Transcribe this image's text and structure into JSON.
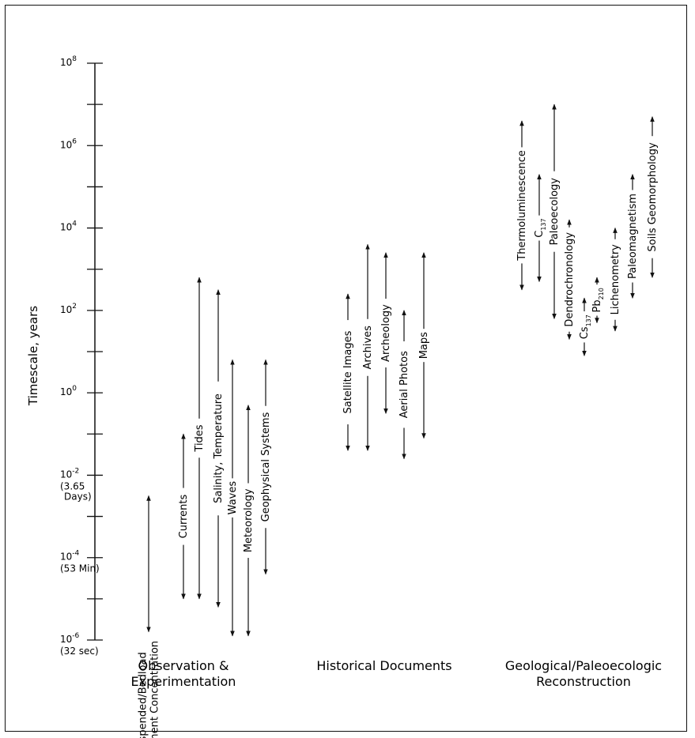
{
  "chart_data": {
    "type": "range",
    "ylabel": "Timescale, years",
    "y_scale": "log10",
    "ylim": [
      1e-06,
      100000000.0
    ],
    "tick_labels": [
      {
        "exp": 8,
        "label": "10",
        "sup": "8"
      },
      {
        "exp": 6,
        "label": "10",
        "sup": "6"
      },
      {
        "exp": 4,
        "label": "10",
        "sup": "4"
      },
      {
        "exp": 2,
        "label": "10",
        "sup": "2"
      },
      {
        "exp": 0,
        "label": "10",
        "sup": "0"
      },
      {
        "exp": -2,
        "label": "10",
        "sup": "-2",
        "note": [
          "(3.65",
          "Days)"
        ]
      },
      {
        "exp": -4,
        "label": "10",
        "sup": "-4",
        "note": [
          "(53 Min)"
        ]
      },
      {
        "exp": -6,
        "label": "10",
        "sup": "-6",
        "note": [
          "(32 sec)"
        ]
      }
    ],
    "groups": [
      {
        "name": [
          "Observation &",
          "Experimentation"
        ],
        "methods": [
          {
            "label": [
              "Suspended/Bedload",
              "Sediment Concentration"
            ],
            "min_exp": -5.8,
            "max_exp": -2.5
          },
          {
            "label": [
              "Currents"
            ],
            "min_exp": -5.0,
            "max_exp": -1.0
          },
          {
            "label": [
              "Tides"
            ],
            "min_exp": -5.0,
            "max_exp": 2.8
          },
          {
            "label": [
              "Salinity, Temperature"
            ],
            "min_exp": -5.2,
            "max_exp": 2.5
          },
          {
            "label": [
              "Waves"
            ],
            "min_exp": -5.9,
            "max_exp": 0.8
          },
          {
            "label": [
              "Meteorology"
            ],
            "min_exp": -5.9,
            "max_exp": -0.3
          },
          {
            "label": [
              "Geophysical Systems"
            ],
            "min_exp": -4.4,
            "max_exp": 0.8
          }
        ]
      },
      {
        "name": [
          "Historical Documents"
        ],
        "methods": [
          {
            "label": [
              "Satellite Images"
            ],
            "min_exp": -1.4,
            "max_exp": 2.4
          },
          {
            "label": [
              "Archives"
            ],
            "min_exp": -1.4,
            "max_exp": 3.6
          },
          {
            "label": [
              "Archeology"
            ],
            "min_exp": -0.5,
            "max_exp": 3.4
          },
          {
            "label": [
              "Aerial Photos"
            ],
            "min_exp": -1.6,
            "max_exp": 2.0
          },
          {
            "label": [
              "Maps"
            ],
            "min_exp": -1.1,
            "max_exp": 3.4
          }
        ]
      },
      {
        "name": [
          "Geological/Paleoecologic",
          "Reconstruction"
        ],
        "methods": [
          {
            "label": [
              "Thermoluminescence"
            ],
            "min_exp": 2.5,
            "max_exp": 6.6
          },
          {
            "label": [
              "C",
              "137"
            ],
            "min_exp": 2.7,
            "max_exp": 5.3
          },
          {
            "label": [
              "Paleoecology"
            ],
            "min_exp": 1.8,
            "max_exp": 7.0
          },
          {
            "label": [
              "Dendrochronology"
            ],
            "min_exp": 1.3,
            "max_exp": 4.2
          },
          {
            "label": [
              "Cs",
              "137"
            ],
            "min_exp": 0.9,
            "max_exp": 2.3
          },
          {
            "label": [
              "Pb",
              "210"
            ],
            "min_exp": 1.7,
            "max_exp": 2.8
          },
          {
            "label": [
              "Lichenometry"
            ],
            "min_exp": 1.5,
            "max_exp": 4.0
          },
          {
            "label": [
              "Paleomagnetism"
            ],
            "min_exp": 2.3,
            "max_exp": 5.3
          },
          {
            "label": [
              "Soils Geomorphology"
            ],
            "min_exp": 2.8,
            "max_exp": 6.7
          }
        ]
      }
    ]
  }
}
